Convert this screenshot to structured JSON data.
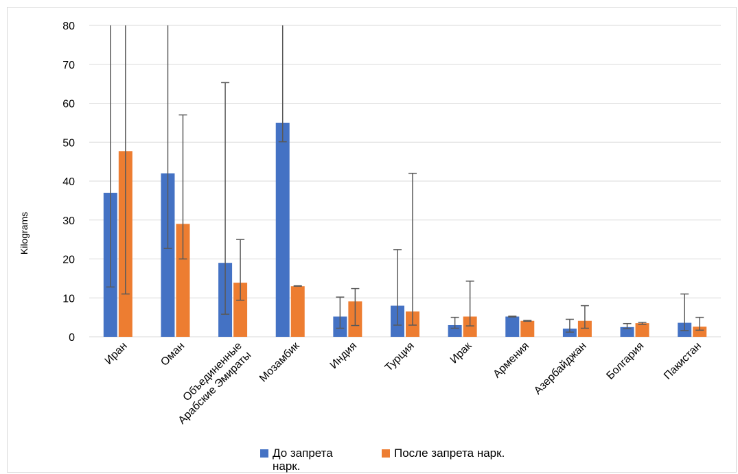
{
  "chart_data": {
    "type": "bar",
    "title": "",
    "xlabel": "",
    "ylabel": "Kilograms",
    "ylim": [
      0,
      80
    ],
    "yticks": [
      "0",
      "10",
      "20",
      "30",
      "40",
      "50",
      "60",
      "70",
      "80"
    ],
    "grid": true,
    "legend_position": "bottom",
    "categories": [
      "Иран",
      "Оман",
      "Объединенные Арабские Эмираты",
      "Мозамбик",
      "Индия",
      "Турция",
      "Ирак",
      "Армения",
      "Азербайджан",
      "Болгария",
      "Пакистан"
    ],
    "series": [
      {
        "name": "До запрета нарк.",
        "color": "#4472C4",
        "values": [
          37,
          42,
          19,
          55,
          5.2,
          8,
          3,
          5.2,
          2.1,
          2.5,
          3.6
        ],
        "error_low": [
          12.8,
          22.7,
          5.8,
          50.1,
          2.2,
          3,
          2.2,
          5.1,
          1.2,
          2.1,
          1.6
        ],
        "error_high": [
          80,
          80,
          65.3,
          80,
          10.2,
          22.4,
          5,
          5.3,
          4.5,
          3.4,
          11
        ]
      },
      {
        "name": "После запрета нарк.",
        "color": "#ED7D31",
        "values": [
          47.7,
          29,
          13.9,
          13,
          9.1,
          6.5,
          5.2,
          4.1,
          4.1,
          3.5,
          2.6
        ],
        "error_low": [
          11,
          20,
          9.4,
          13,
          2.9,
          3,
          2.8,
          4,
          2.2,
          3.2,
          1.7
        ],
        "error_high": [
          80,
          57,
          25,
          13.1,
          12.4,
          42,
          14.3,
          4.2,
          8,
          3.7,
          5
        ]
      }
    ]
  }
}
